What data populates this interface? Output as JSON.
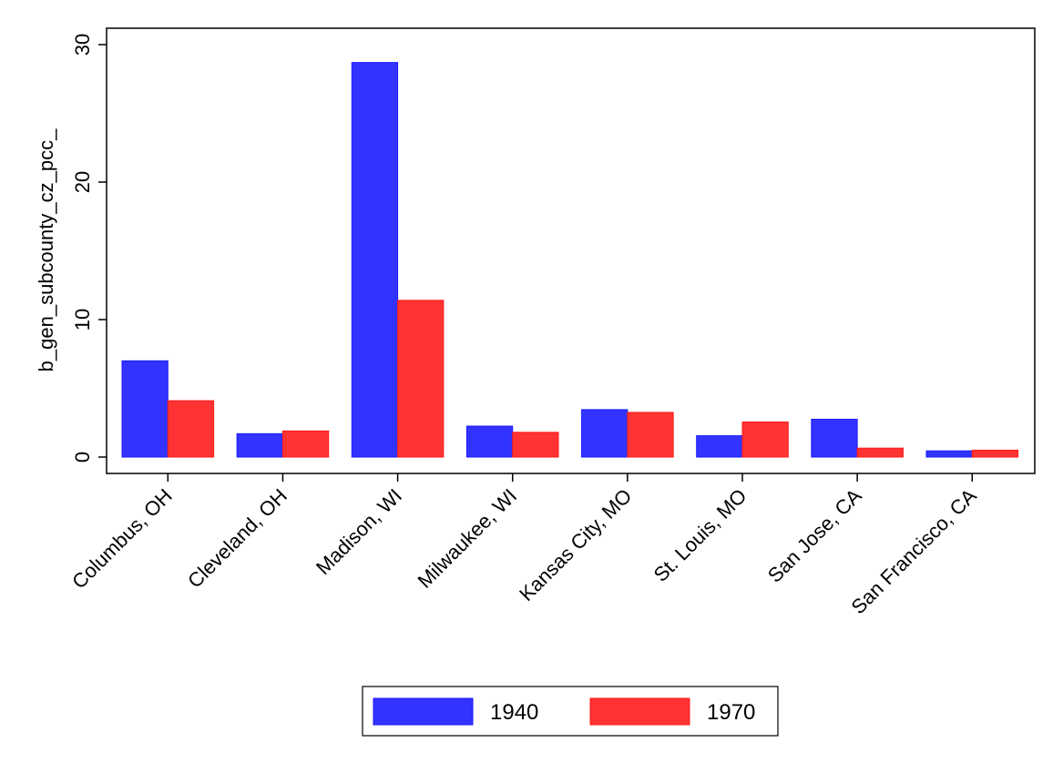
{
  "chart_data": {
    "type": "bar",
    "categories": [
      "Columbus, OH",
      "Cleveland, OH",
      "Madison, WI",
      "Milwaukee, WI",
      "Kansas City, MO",
      "St. Louis, MO",
      "San Jose, CA",
      "San Francisco, CA"
    ],
    "series": [
      {
        "name": "1940",
        "values": [
          7.0,
          1.7,
          28.7,
          2.25,
          3.45,
          1.55,
          2.75,
          0.45
        ],
        "color": "#3333ff",
        "edge": "#1a1aff"
      },
      {
        "name": "1970",
        "values": [
          4.1,
          1.9,
          11.4,
          1.8,
          3.25,
          2.55,
          0.65,
          0.5
        ],
        "color": "#ff3333",
        "edge": "#ff1a1a"
      }
    ],
    "title": "",
    "xlabel": "",
    "ylabel": "b_gen_subcounty_cz_pcc_",
    "ylim": [
      0,
      30
    ],
    "yticks": [
      0,
      10,
      20,
      30
    ],
    "grid": false,
    "legend_position": "bottom"
  }
}
